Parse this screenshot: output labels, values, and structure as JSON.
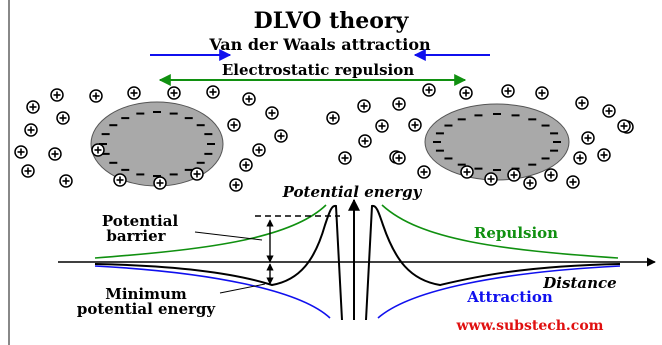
{
  "title": "DLVO theory",
  "arrows": {
    "van_der_waals": "Van der Waals attraction",
    "electrostatic": "Electrostatic repulsion"
  },
  "graph": {
    "y_axis_label": "Potential energy",
    "x_axis_label": "Distance",
    "repulsion_label": "Repulsion",
    "attraction_label": "Attraction",
    "barrier_label_line1": "Potential",
    "barrier_label_line2": "barrier",
    "minimum_label_line1": "Minimum",
    "minimum_label_line2": "potential energy"
  },
  "watermark": "www.substech.com",
  "colors": {
    "blue": "#1010ee",
    "green": "#109010",
    "red": "#e01010",
    "particle": "#a9a9a9"
  },
  "icons": {
    "ion": "plus-in-circle",
    "surface_charge": "minus-sign"
  }
}
